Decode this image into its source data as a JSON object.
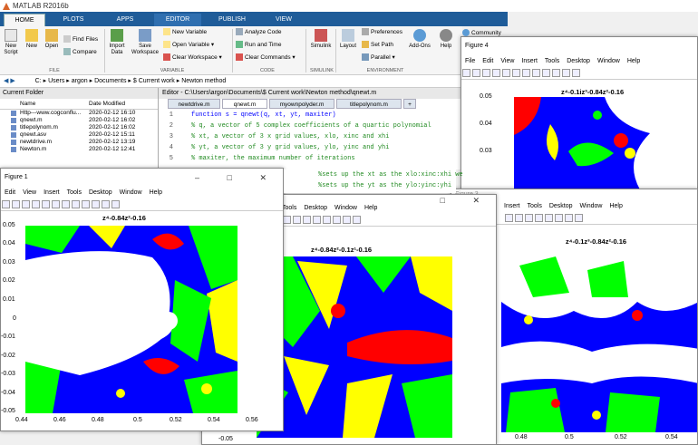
{
  "app": {
    "title": "MATLAB R2016b"
  },
  "tabs": [
    "HOME",
    "PLOTS",
    "APPS",
    "EDITOR",
    "PUBLISH",
    "VIEW"
  ],
  "ribbon": {
    "big": [
      "New Script",
      "New",
      "Open",
      "Import Data",
      "Save Workspace",
      "Simulink",
      "Layout",
      "Add-Ons",
      "Help"
    ],
    "small": [
      "Find Files",
      "Compare",
      "New Variable",
      "Open Variable ▾",
      "Clear Workspace ▾",
      "Analyze Code",
      "Run and Time",
      "Clear Commands ▾",
      "Preferences",
      "Set Path",
      "Parallel ▾",
      "Community"
    ],
    "sections": [
      "FILE",
      "VARIABLE",
      "CODE",
      "SIMULINK",
      "ENVIRONMENT"
    ]
  },
  "path": {
    "segments": [
      "C:",
      "Users",
      "argon",
      "Documents",
      "$ Current work",
      "Newton method"
    ]
  },
  "folder": {
    "title": "Current Folder",
    "col_name": "Name",
    "col_date": "Date Modified",
    "files": [
      {
        "name": "Http---www.cogconflu...",
        "date": "2020-02-12 16:10"
      },
      {
        "name": "qnewt.m",
        "date": "2020-02-12 16:02"
      },
      {
        "name": "titlepolynom.m",
        "date": "2020-02-12 16:02"
      },
      {
        "name": "qnewt.asv",
        "date": "2020-02-12 15:11"
      },
      {
        "name": "newtdrive.m",
        "date": "2020-02-12 13:19"
      },
      {
        "name": "Newton.m",
        "date": "2020-02-12 12:41"
      }
    ]
  },
  "editor": {
    "title": "Editor - C:\\Users\\argon\\Documents\\$ Current work\\Newton method\\qnewt.m",
    "tabs": [
      "newtdrive.m",
      "qnewt.m",
      "myownpolyder.m",
      "titlepolynom.m",
      "+"
    ],
    "lines": [
      {
        "n": "1",
        "code": "function s = qnewt(q, xt, yt, maxiter)"
      },
      {
        "n": "2",
        "code": "% q, a vector of 5 complex coefficients of a quartic polynomial"
      },
      {
        "n": "3",
        "code": "% xt, a vector of 3 x grid values, xlo, xinc and xhi"
      },
      {
        "n": "4",
        "code": "% yt, a vector of 3 y grid values, ylo, yinc and yhi"
      },
      {
        "n": "5",
        "code": "% maxiter, the maximum number of iterations"
      },
      {
        "n": "6",
        "code": ""
      },
      {
        "n": "7",
        "code": "%sets up the xt as the xlo:xinc:xhi we"
      },
      {
        "n": "8",
        "code": "%sets up the yt as the ylo:yinc:yhi"
      }
    ]
  },
  "figures": {
    "menus": [
      "File",
      "Edit",
      "View",
      "Insert",
      "Tools",
      "Desktop",
      "Window",
      "Help"
    ],
    "fig1": {
      "title": "Figure 1",
      "plot_title": "z⁴-0.84z²-0.16",
      "yticks": [
        "0.05",
        "0.04",
        "0.03",
        "0.02",
        "0.01",
        "0",
        "-0.01",
        "-0.02",
        "-0.03",
        "-0.04",
        "-0.05"
      ],
      "xticks": [
        "0.44",
        "0.46",
        "0.48",
        "0.5",
        "0.52",
        "0.54",
        "0.56"
      ]
    },
    "fig2": {
      "title": "Figure 2",
      "plot_title": "z⁴-0.84z²-0.1z¹-0.16",
      "bottom_tick": "-0.05"
    },
    "fig3": {
      "title": "Figure 3",
      "plot_title": "z⁴-0.1z³-0.84z²-0.16",
      "xticks": [
        "0.48",
        "0.5",
        "0.52",
        "0.54"
      ]
    },
    "fig4": {
      "title": "Figure 4",
      "plot_title": "z⁴-0.1iz³-0.84z²-0.16",
      "yticks": [
        "0.05",
        "0.04",
        "0.03"
      ]
    }
  },
  "colors": {
    "blue": "#0000ff",
    "red": "#ff0000",
    "yellow": "#ffff00",
    "green": "#00ff00",
    "matlab_blue": "#1f5c99"
  }
}
